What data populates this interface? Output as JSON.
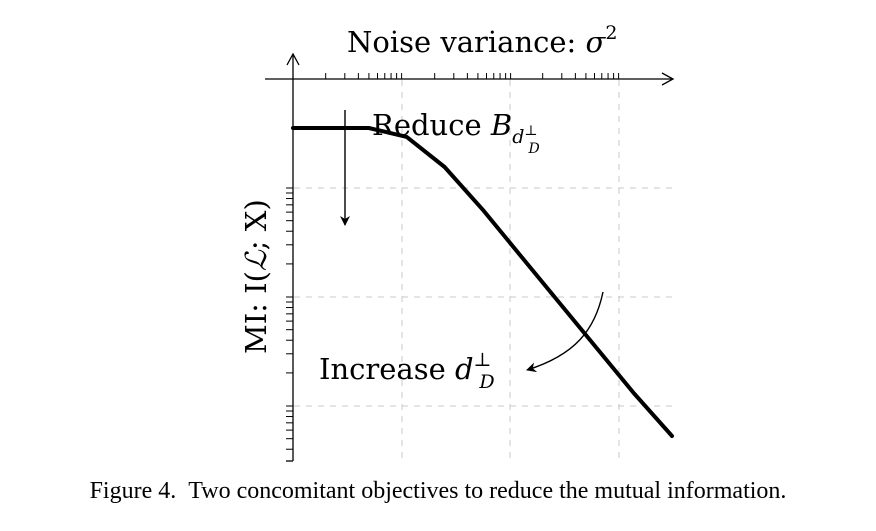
{
  "chart_data": {
    "type": "line",
    "title": "",
    "xlabel": {
      "text": "Noise variance: ",
      "symbol": "σ",
      "exponent": "2"
    },
    "ylabel": {
      "prefix": "MI: I(",
      "symbol": "ℒ",
      "suffix": "; X)"
    },
    "x_scale": "log",
    "y_scale": "log",
    "grid": true,
    "xlim": [
      0,
      10
    ],
    "ylim": [
      0,
      10
    ],
    "series": [
      {
        "x": [
          0,
          1,
          2,
          3,
          4,
          5,
          6,
          7,
          8,
          9,
          10
        ],
        "y": [
          8.7,
          8.7,
          8.7,
          8.45,
          7.6,
          6.4,
          5.1,
          3.8,
          2.5,
          1.2,
          0
        ]
      }
    ],
    "annotations": [
      {
        "text": "Reduce ",
        "symbol": "B",
        "subscript": "d",
        "subsub_sup": "⊥",
        "subsub_sub": "D",
        "direction": "down"
      },
      {
        "text": "Increase ",
        "symbol": "d",
        "sup": "⊥",
        "sub": "D",
        "direction": "curved-left"
      }
    ]
  },
  "caption": {
    "label": "Figure 4.",
    "text": "Two concomitant objectives to reduce the mutual information."
  }
}
